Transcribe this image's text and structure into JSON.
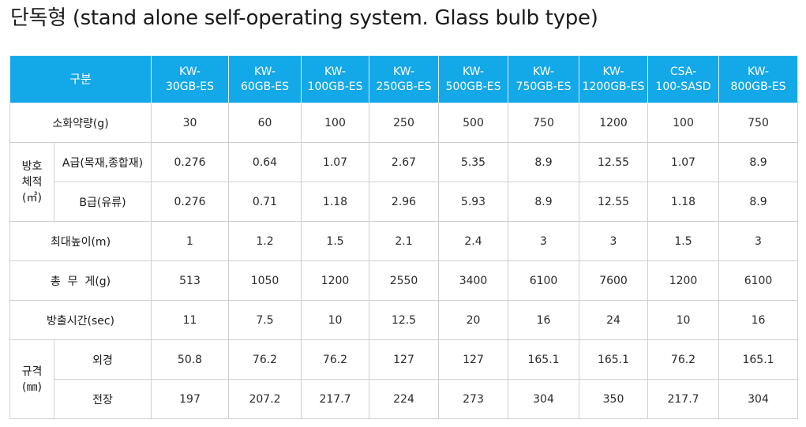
{
  "title": "단독형 (stand alone self-operating system. Glass bulb type)",
  "table": {
    "header_label": "구분",
    "models": [
      {
        "line1": "KW-",
        "line2": "30GB-ES"
      },
      {
        "line1": "KW-",
        "line2": "60GB-ES"
      },
      {
        "line1": "KW-",
        "line2": "100GB-ES"
      },
      {
        "line1": "KW-",
        "line2": "250GB-ES"
      },
      {
        "line1": "KW-",
        "line2": "500GB-ES"
      },
      {
        "line1": "KW-",
        "line2": "750GB-ES"
      },
      {
        "line1": "KW-",
        "line2": "1200GB-ES"
      },
      {
        "line1": "CSA-",
        "line2": "100-SASD"
      },
      {
        "line1": "KW-",
        "line2": "800GB-ES"
      }
    ],
    "rows": {
      "agent_amount": {
        "label": "소화약량(g)",
        "values": [
          "30",
          "60",
          "100",
          "250",
          "500",
          "750",
          "1200",
          "100",
          "750"
        ]
      },
      "protection": {
        "group_line1": "방호",
        "group_line2": "체적",
        "group_line3": "(㎥)",
        "class_a": {
          "label": "A급(목재,종합재)",
          "values": [
            "0.276",
            "0.64",
            "1.07",
            "2.67",
            "5.35",
            "8.9",
            "12.55",
            "1.07",
            "8.9"
          ]
        },
        "class_b": {
          "label": "B급(유류)",
          "values": [
            "0.276",
            "0.71",
            "1.18",
            "2.96",
            "5.93",
            "8.9",
            "12.55",
            "1.18",
            "8.9"
          ]
        }
      },
      "max_height": {
        "label": "최대높이(m)",
        "values": [
          "1",
          "1.2",
          "1.5",
          "2.1",
          "2.4",
          "3",
          "3",
          "1.5",
          "3"
        ]
      },
      "total_weight": {
        "label": "총  무  게(g)",
        "values": [
          "513",
          "1050",
          "1200",
          "2550",
          "3400",
          "6100",
          "7600",
          "1200",
          "6100"
        ]
      },
      "discharge_time": {
        "label": "방출시간(sec)",
        "values": [
          "11",
          "7.5",
          "10",
          "12.5",
          "20",
          "16",
          "24",
          "10",
          "16"
        ]
      },
      "spec": {
        "group_line1": "규격",
        "group_line2": "(㎜)",
        "outer_diameter": {
          "label": "외경",
          "values": [
            "50.8",
            "76.2",
            "76.2",
            "127",
            "127",
            "165.1",
            "165.1",
            "76.2",
            "165.1"
          ]
        },
        "length": {
          "label": "전장",
          "values": [
            "197",
            "207.2",
            "217.7",
            "224",
            "273",
            "304",
            "350",
            "217.7",
            "304"
          ]
        }
      }
    }
  }
}
